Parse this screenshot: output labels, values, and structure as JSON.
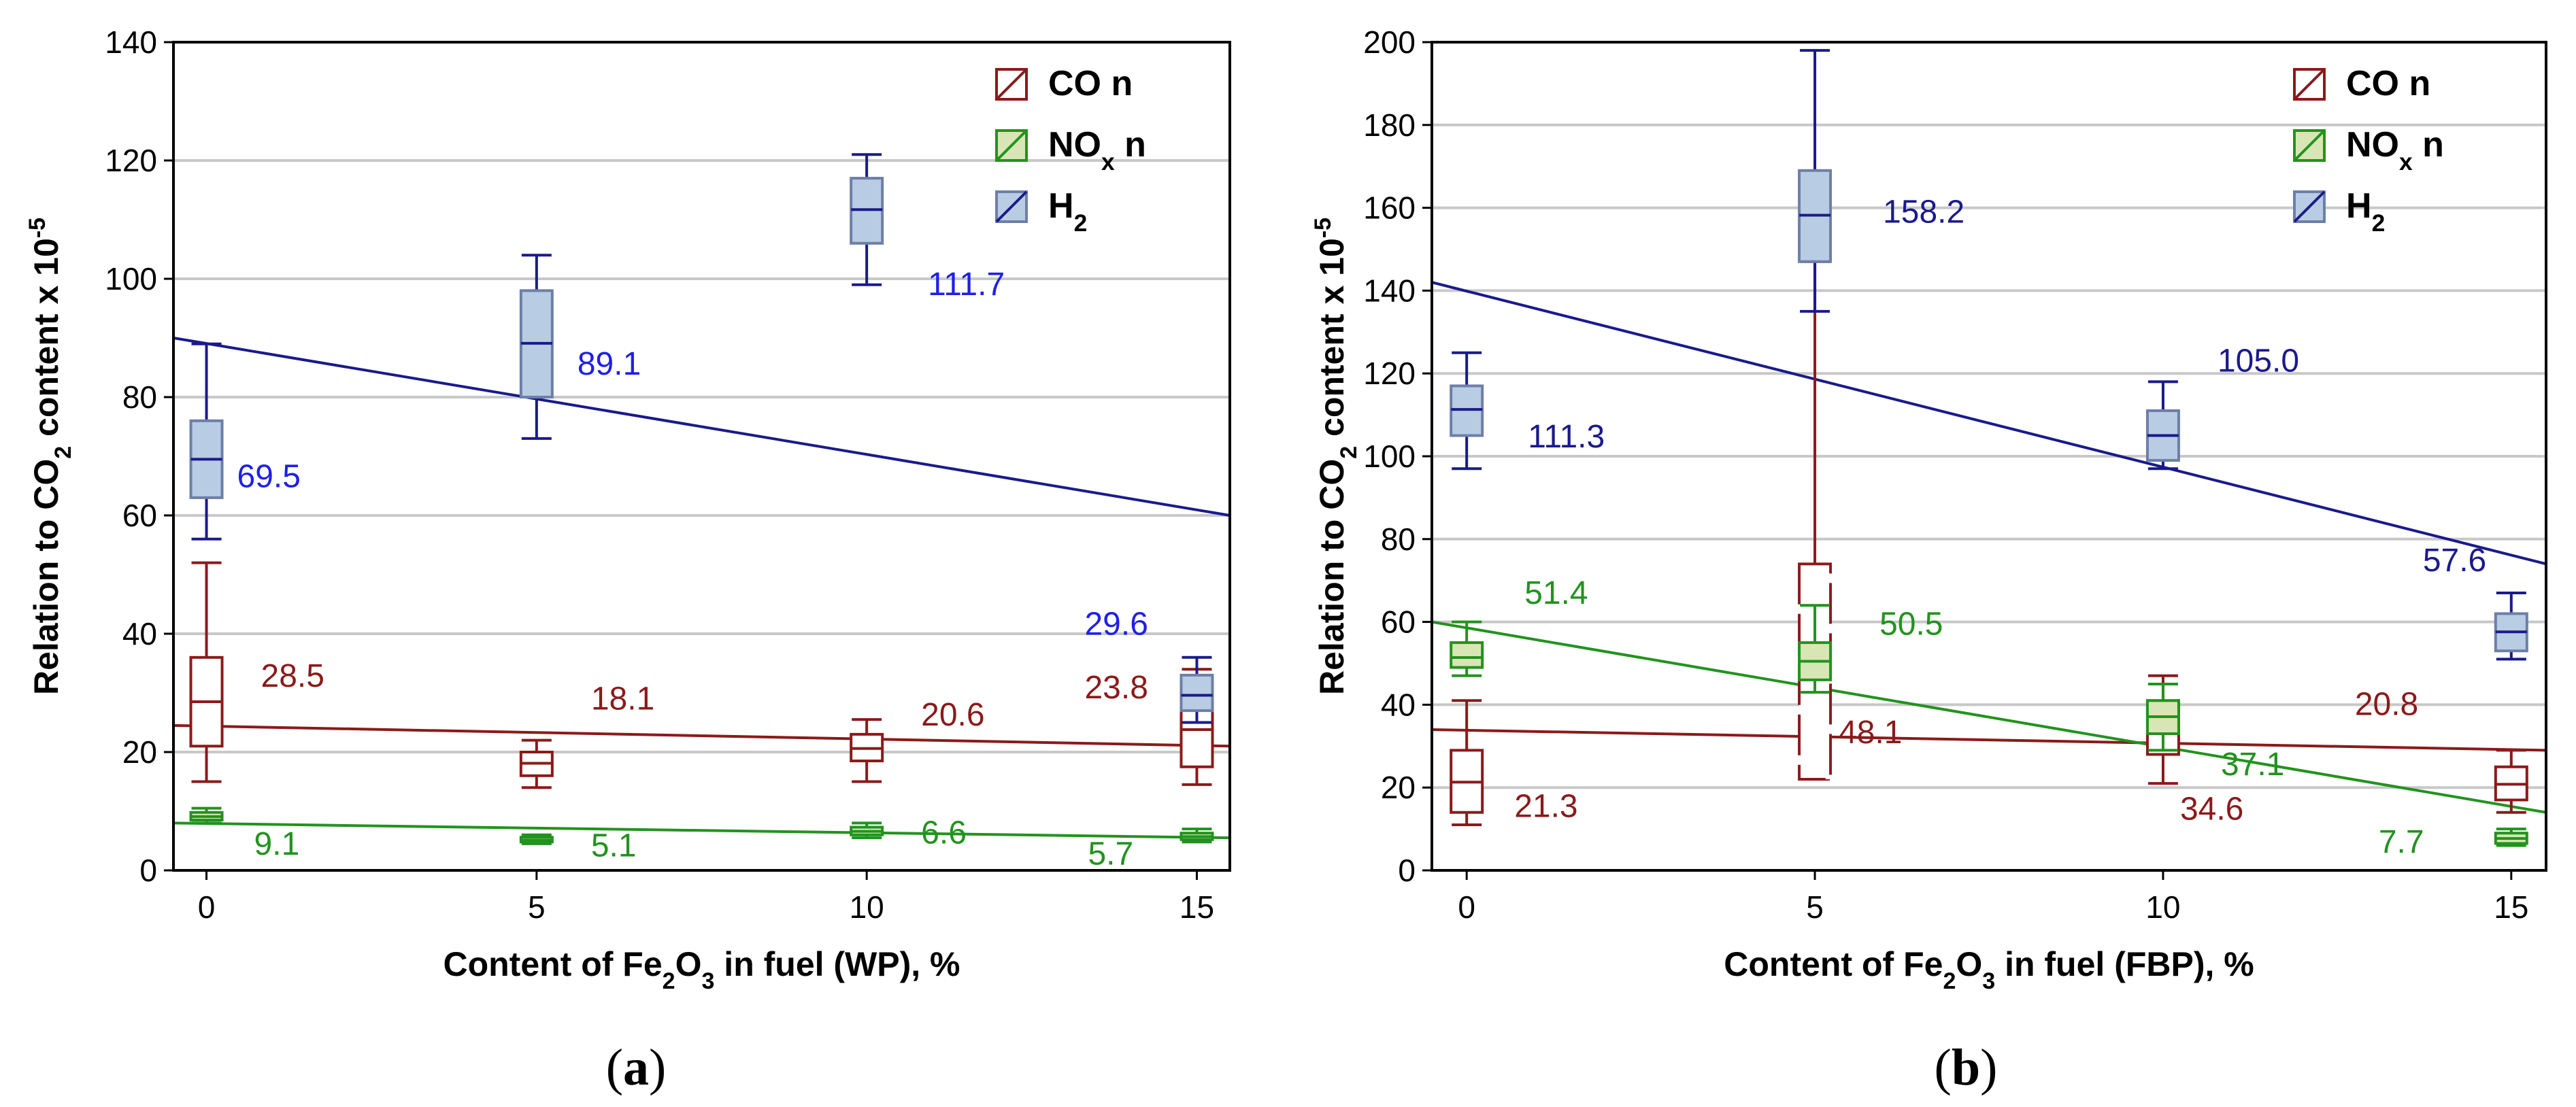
{
  "chart_data": [
    {
      "type": "box",
      "caption_letter": "a",
      "xlabel_parts": [
        "Content of Fe",
        "2",
        "O",
        "3",
        " in fuel (WP), %"
      ],
      "ylabel_parts": [
        "Relation to CO",
        "2",
        " content x 10",
        "-5"
      ],
      "x_ticks": [
        0,
        5,
        10,
        15
      ],
      "xlim": [
        -0.5,
        15.5
      ],
      "ylim": [
        0,
        140
      ],
      "y_ticks": [
        0,
        20,
        40,
        60,
        80,
        100,
        120,
        140
      ],
      "grid": true,
      "legend_position": "top-right",
      "series": [
        {
          "key": "co",
          "name": "CO n",
          "legend_parts": [
            "CO n"
          ],
          "color": "#8b1a1a",
          "fill": "#ffffff",
          "boxes": [
            {
              "x": 0,
              "whisker_low": 15,
              "q1": 21,
              "median": 28.5,
              "q3": 36,
              "whisker_high": 52
            },
            {
              "x": 5,
              "whisker_low": 14,
              "q1": 16,
              "median": 18.1,
              "q3": 20,
              "whisker_high": 22
            },
            {
              "x": 10,
              "whisker_low": 15,
              "q1": 18.5,
              "median": 20.6,
              "q3": 23,
              "whisker_high": 25.5
            },
            {
              "x": 15,
              "whisker_low": 14.5,
              "q1": 17.5,
              "median": 23.8,
              "q3": 30,
              "whisker_high": 34
            }
          ],
          "trend": [
            24.5,
            21
          ],
          "labels": [
            "28.5",
            "18.1",
            "20.6",
            "23.8"
          ]
        },
        {
          "key": "nox",
          "name": "NOx n",
          "legend_parts": [
            "NO",
            "x",
            " n"
          ],
          "color": "#22931e",
          "fill": "#d8e6b5",
          "boxes": [
            {
              "x": 0,
              "whisker_low": 8,
              "q1": 8.5,
              "median": 9.1,
              "q3": 9.8,
              "whisker_high": 10.5
            },
            {
              "x": 5,
              "whisker_low": 4.5,
              "q1": 4.8,
              "median": 5.1,
              "q3": 5.6,
              "whisker_high": 6
            },
            {
              "x": 10,
              "whisker_low": 5.5,
              "q1": 6,
              "median": 6.6,
              "q3": 7.3,
              "whisker_high": 8
            },
            {
              "x": 15,
              "whisker_low": 4.8,
              "q1": 5.2,
              "median": 5.7,
              "q3": 6.3,
              "whisker_high": 7
            }
          ],
          "trend": [
            8,
            5.5
          ],
          "labels": [
            "9.1",
            "5.1",
            "6.6",
            "5.7"
          ]
        },
        {
          "key": "h2",
          "name": "H2",
          "legend_parts": [
            "H",
            "2"
          ],
          "color": "#1a1a8c",
          "fill": "#b8cce4",
          "boxes": [
            {
              "x": 0,
              "whisker_low": 56,
              "q1": 63,
              "median": 69.5,
              "q3": 76,
              "whisker_high": 89
            },
            {
              "x": 5,
              "whisker_low": 73,
              "q1": 80,
              "median": 89.1,
              "q3": 98,
              "whisker_high": 104
            },
            {
              "x": 10,
              "whisker_low": 99,
              "q1": 106,
              "median": 111.7,
              "q3": 117,
              "whisker_high": 121
            },
            {
              "x": 15,
              "whisker_low": 25,
              "q1": 27,
              "median": 29.6,
              "q3": 33,
              "whisker_high": 36
            }
          ],
          "trend": [
            90,
            60
          ],
          "labels": [
            "69.5",
            "89.1",
            "111.7",
            "29.6"
          ],
          "label_color": "#1f1fe8"
        }
      ]
    },
    {
      "type": "box",
      "caption_letter": "b",
      "xlabel_parts": [
        "Content of Fe",
        "2",
        "O",
        "3",
        " in fuel (FBP), %"
      ],
      "ylabel_parts": [
        "Relation to CO",
        "2",
        " content x 10",
        "-5"
      ],
      "x_ticks": [
        0,
        5,
        10,
        15
      ],
      "xlim": [
        -0.5,
        15.5
      ],
      "ylim": [
        0,
        200
      ],
      "y_ticks": [
        0,
        20,
        40,
        60,
        80,
        100,
        120,
        140,
        160,
        180,
        200
      ],
      "grid": true,
      "legend_position": "top-right",
      "series": [
        {
          "key": "co",
          "name": "CO n",
          "legend_parts": [
            "CO n"
          ],
          "color": "#8b1a1a",
          "fill": "#ffffff",
          "boxes": [
            {
              "x": 0,
              "whisker_low": 11,
              "q1": 14,
              "median": 21.3,
              "q3": 29,
              "whisker_high": 41
            },
            {
              "x": 5,
              "whisker_low": 22,
              "q1": 22,
              "median": 48.1,
              "q3": 74,
              "whisker_high": 147
            },
            {
              "x": 10,
              "whisker_low": 21,
              "q1": 28,
              "median": 34.6,
              "q3": 41,
              "whisker_high": 47
            },
            {
              "x": 15,
              "whisker_low": 14,
              "q1": 17,
              "median": 20.8,
              "q3": 25,
              "whisker_high": 29
            }
          ],
          "trend": [
            34,
            29
          ],
          "labels": [
            "21.3",
            "48.1",
            "34.6",
            "20.8"
          ]
        },
        {
          "key": "nox",
          "name": "NOx n",
          "legend_parts": [
            "NO",
            "x",
            " n"
          ],
          "color": "#22931e",
          "fill": "#d8e6b5",
          "boxes": [
            {
              "x": 0,
              "whisker_low": 47,
              "q1": 49,
              "median": 51.4,
              "q3": 55,
              "whisker_high": 60
            },
            {
              "x": 5,
              "whisker_low": 43,
              "q1": 46,
              "median": 50.5,
              "q3": 55,
              "whisker_high": 64
            },
            {
              "x": 10,
              "whisker_low": 29,
              "q1": 33,
              "median": 37.1,
              "q3": 41,
              "whisker_high": 45
            },
            {
              "x": 15,
              "whisker_low": 6,
              "q1": 6.5,
              "median": 7.7,
              "q3": 9,
              "whisker_high": 10
            }
          ],
          "trend": [
            60,
            14
          ],
          "labels": [
            "51.4",
            "50.5",
            "37.1",
            "7.7"
          ]
        },
        {
          "key": "h2",
          "name": "H2",
          "legend_parts": [
            "H",
            "2"
          ],
          "color": "#1a1a8c",
          "fill": "#b8cce4",
          "boxes": [
            {
              "x": 0,
              "whisker_low": 97,
              "q1": 105,
              "median": 111.3,
              "q3": 117,
              "whisker_high": 125
            },
            {
              "x": 5,
              "whisker_low": 135,
              "q1": 147,
              "median": 158.2,
              "q3": 169,
              "whisker_high": 198
            },
            {
              "x": 10,
              "whisker_low": 97,
              "q1": 99,
              "median": 105,
              "q3": 111,
              "whisker_high": 118
            },
            {
              "x": 15,
              "whisker_low": 51,
              "q1": 53,
              "median": 57.6,
              "q3": 62,
              "whisker_high": 67
            }
          ],
          "trend": [
            142,
            74
          ],
          "labels": [
            "111.3",
            "158.2",
            "105.0",
            "57.6"
          ]
        }
      ]
    }
  ]
}
